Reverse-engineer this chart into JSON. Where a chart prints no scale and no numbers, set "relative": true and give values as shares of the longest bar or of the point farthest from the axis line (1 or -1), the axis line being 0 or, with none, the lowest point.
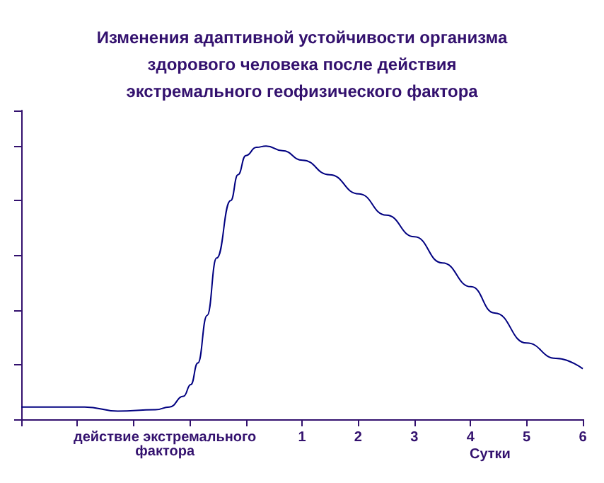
{
  "chart_data": {
    "type": "line",
    "title": "Изменения адаптивной устойчивости организма\nздорового человека после действия\nэкстремального геофизического фактора",
    "xlabel": "Сутки",
    "annotations": [
      "действие экстремального\nфактора"
    ],
    "relative": true,
    "marker": "none",
    "grid": false,
    "x": [
      -4,
      -2.87,
      -2.28,
      -1.61,
      -1.36,
      -1.11,
      -0.98,
      -0.855,
      -0.69,
      -0.52,
      -0.27,
      -0.14,
      0,
      0.19,
      0.36,
      0.65,
      1.01,
      1.49,
      2.01,
      2.5,
      3.0,
      3.5,
      4.01,
      4.43,
      5.0,
      5.52,
      6.0
    ],
    "series": [
      {
        "color": "#000080",
        "values": [
          0.045,
          0.045,
          0.03,
          0.035,
          0.045,
          0.084,
          0.127,
          0.206,
          0.38,
          0.59,
          0.8,
          0.895,
          0.965,
          0.995,
          1,
          0.983,
          0.948,
          0.895,
          0.825,
          0.747,
          0.668,
          0.572,
          0.485,
          0.389,
          0.279,
          0.223,
          0.185
        ]
      }
    ],
    "xlim": [
      -4,
      6
    ],
    "xticks": [
      {
        "value": -4,
        "label": null
      },
      {
        "value": -3,
        "label": null
      },
      {
        "value": -2,
        "label": null
      },
      {
        "value": -1,
        "label": null
      },
      {
        "value": 0,
        "label": null
      },
      1,
      2,
      3,
      4,
      5,
      6
    ]
  }
}
